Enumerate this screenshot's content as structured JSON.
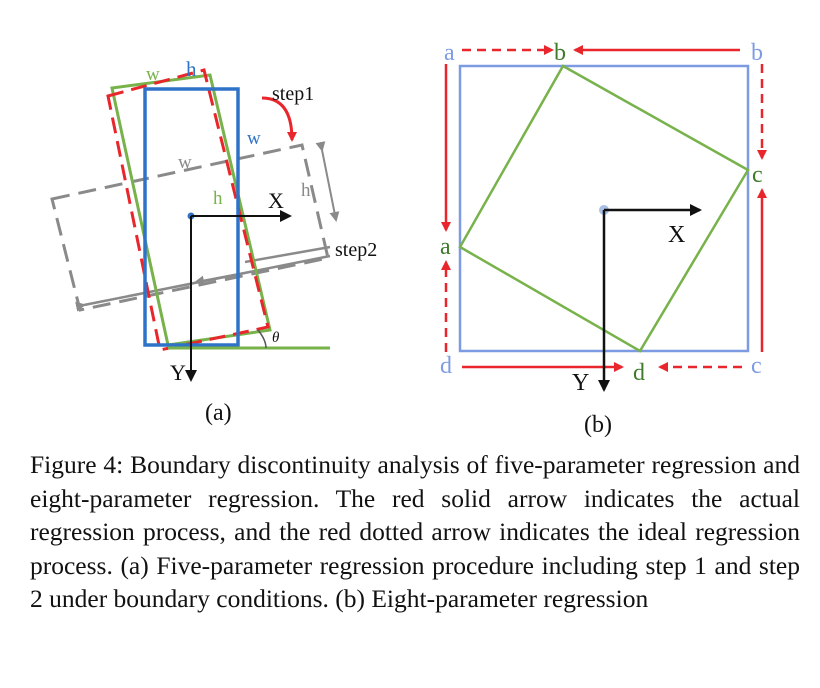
{
  "figure": {
    "panel_a": {
      "label": "(a)",
      "w_green": "w",
      "h_blue": "h",
      "w_blue": "w",
      "w_gray": "w",
      "h_gray": "h",
      "h_green": "h",
      "step1": "step1",
      "step2": "step2",
      "x_axis": "X",
      "y_axis": "Y",
      "theta": "θ"
    },
    "panel_b": {
      "label": "(b)",
      "corner_a_top": "a",
      "corner_b_top": "b",
      "corner_b_right": "b",
      "corner_c_right": "c",
      "corner_a_left": "a",
      "corner_d_left": "d",
      "corner_d_bottom": "d",
      "corner_c_bottom": "c",
      "x_axis": "X",
      "y_axis": "Y"
    },
    "colors": {
      "red": "#e8262b",
      "blue": "#2f73c8",
      "green": "#77b24a",
      "gray": "#8a8a8a",
      "light_blue": "#7d9be3",
      "dark_green": "#3f7a2a"
    }
  },
  "caption": {
    "text": "Figure 4: Boundary discontinuity analysis of five-parameter regression and eight-parameter regression. The red solid arrow indicates the actual regression process, and the red dotted arrow indicates the ideal regression process. (a) Five-parameter regression procedure including step 1 and step 2 under boundary conditions. (b) Eight-parameter regression"
  }
}
